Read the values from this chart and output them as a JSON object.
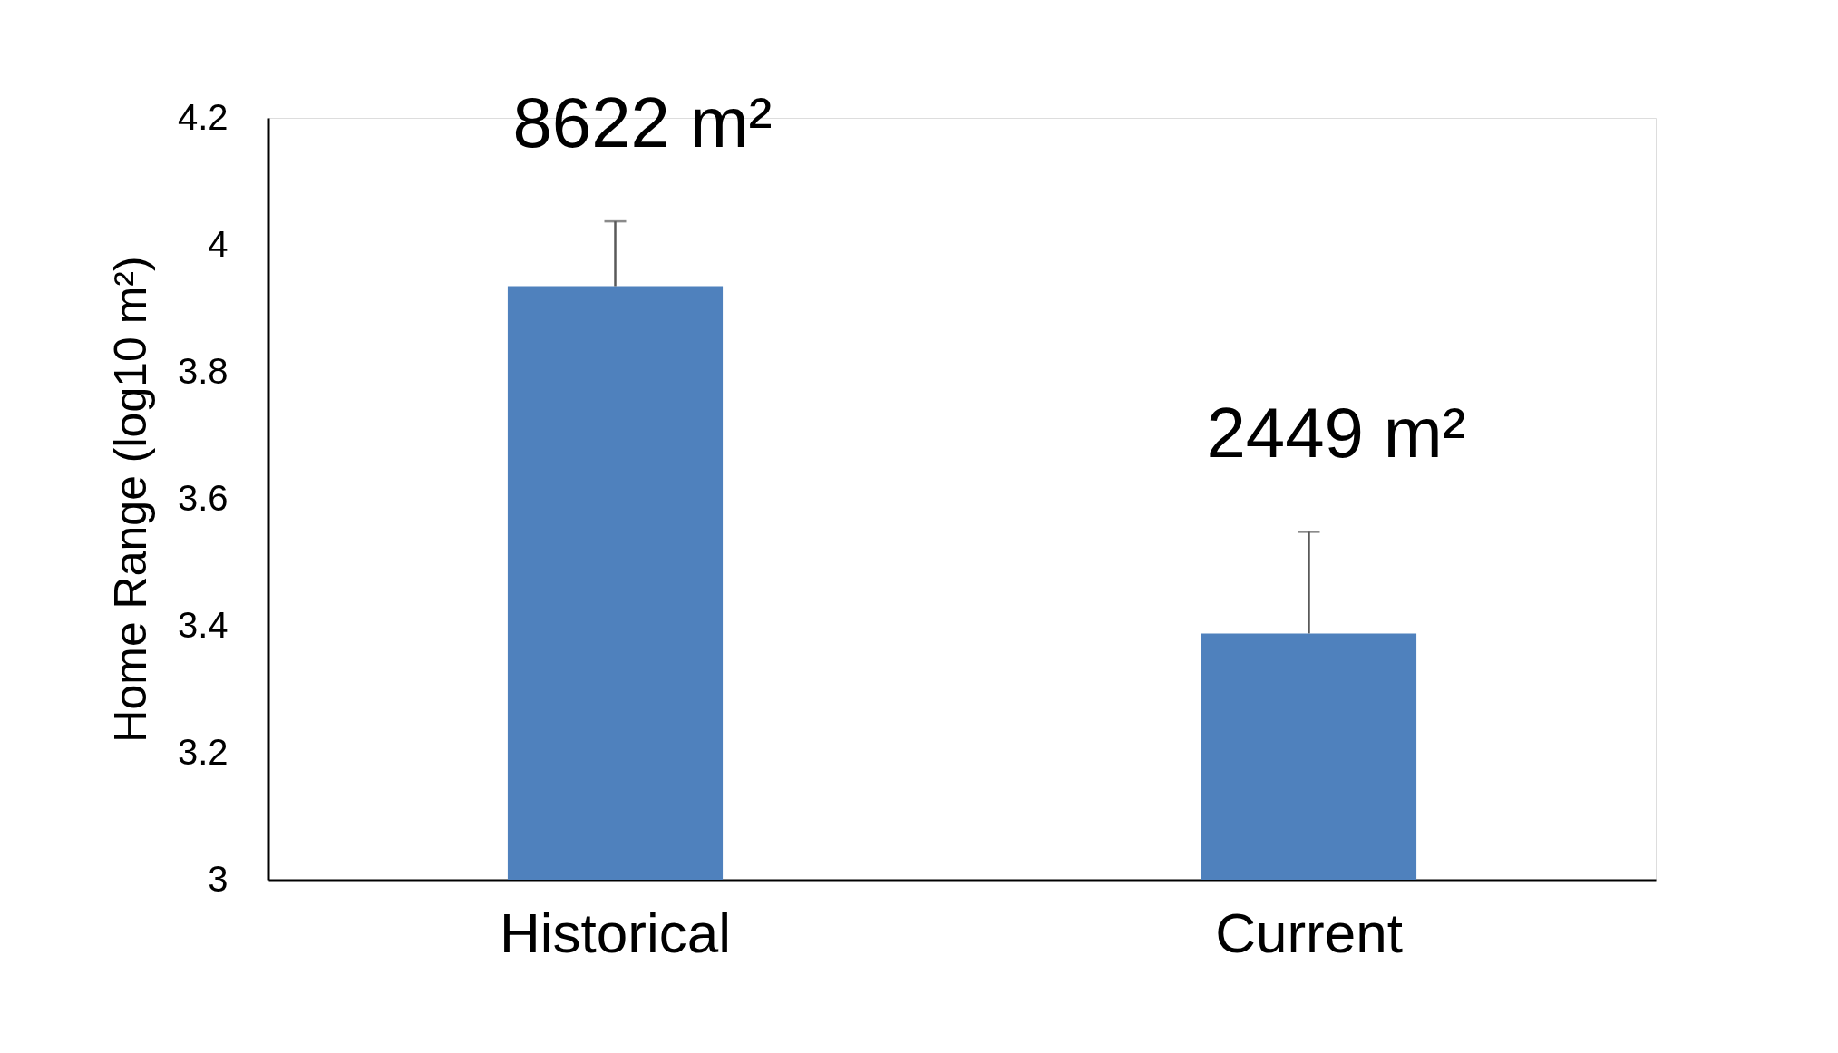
{
  "chart_data": {
    "type": "bar",
    "ylabel": "Home Range (log10 m²)",
    "categories": [
      "Historical",
      "Current"
    ],
    "values": [
      3.935,
      3.388
    ],
    "errors": [
      [
        3.935,
        4.037
      ],
      [
        3.388,
        3.548
      ]
    ],
    "color": "#4f81bd",
    "ylim": [
      3,
      4.2
    ],
    "yticks": [
      3,
      3.2,
      3.4,
      3.6,
      3.8,
      4,
      4.2
    ],
    "grid": false,
    "annotations": [
      {
        "text": "8622 m²",
        "x": "Historical",
        "y": 4.037
      },
      {
        "text": "2449 m²",
        "x": "Current",
        "y": 3.548
      }
    ]
  }
}
